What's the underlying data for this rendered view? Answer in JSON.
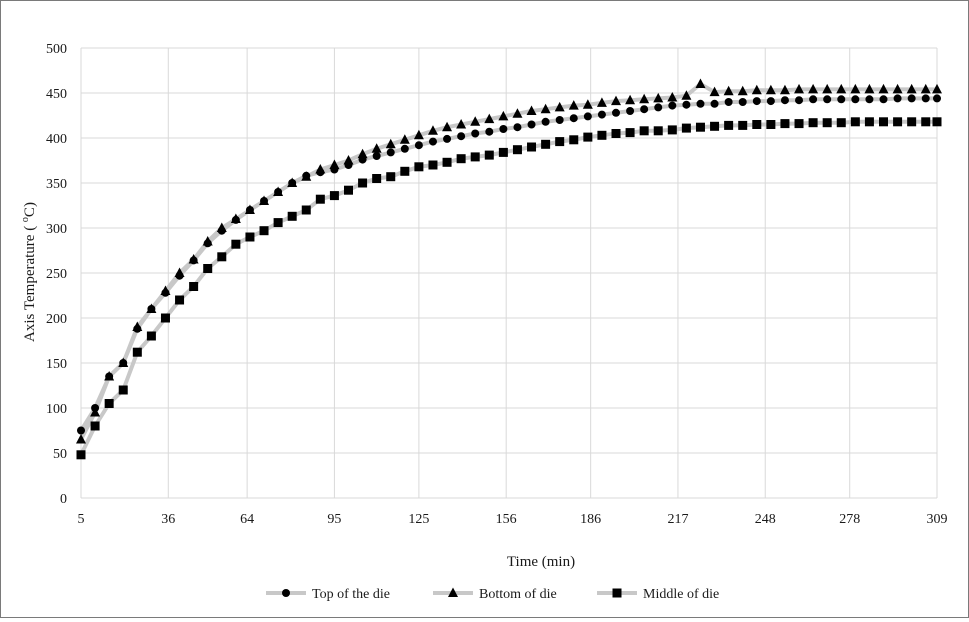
{
  "chart_data": {
    "type": "line",
    "xlabel": "Time (min)",
    "ylabel": "Axis Temperature ( °C)",
    "ylabel_main": "Axis Temperature ( ",
    "ylabel_sup": "o",
    "ylabel_unit": "C)",
    "xlim": [
      5,
      309
    ],
    "ylim": [
      0,
      500
    ],
    "x_ticks": [
      5,
      36,
      64,
      95,
      125,
      156,
      186,
      217,
      248,
      278,
      309
    ],
    "y_ticks": [
      0,
      50,
      100,
      150,
      200,
      250,
      300,
      350,
      400,
      450,
      500
    ],
    "grid": true,
    "legend_position": "bottom",
    "line_color": "#c8c8c8",
    "marker_color": "#000000",
    "series": [
      {
        "name": "Top of the die",
        "marker": "circle",
        "x": [
          5,
          10,
          15,
          20,
          25,
          30,
          35,
          40,
          45,
          50,
          55,
          60,
          65,
          70,
          75,
          80,
          85,
          90,
          95,
          100,
          105,
          110,
          115,
          120,
          125,
          130,
          135,
          140,
          145,
          150,
          155,
          160,
          165,
          170,
          175,
          180,
          185,
          190,
          195,
          200,
          205,
          210,
          215,
          220,
          225,
          230,
          235,
          240,
          245,
          250,
          255,
          260,
          265,
          270,
          275,
          280,
          285,
          290,
          295,
          300,
          305,
          309
        ],
        "values": [
          75,
          100,
          135,
          150,
          188,
          210,
          228,
          247,
          264,
          283,
          297,
          309,
          320,
          330,
          340,
          350,
          358,
          362,
          365,
          370,
          376,
          380,
          384,
          388,
          392,
          396,
          399,
          402,
          405,
          407,
          410,
          412,
          415,
          418,
          420,
          422,
          424,
          426,
          428,
          430,
          432,
          434,
          436,
          437,
          438,
          438,
          440,
          440,
          441,
          441,
          442,
          442,
          443,
          443,
          443,
          443,
          443,
          443,
          444,
          444,
          444,
          444
        ]
      },
      {
        "name": "Bottom of die",
        "marker": "triangle",
        "x": [
          5,
          10,
          15,
          20,
          25,
          30,
          35,
          40,
          45,
          50,
          55,
          60,
          65,
          70,
          75,
          80,
          85,
          90,
          95,
          100,
          105,
          110,
          115,
          120,
          125,
          130,
          135,
          140,
          145,
          150,
          155,
          160,
          165,
          170,
          175,
          180,
          185,
          190,
          195,
          200,
          205,
          210,
          215,
          220,
          225,
          230,
          235,
          240,
          245,
          250,
          255,
          260,
          265,
          270,
          275,
          280,
          285,
          290,
          295,
          300,
          305,
          309
        ],
        "values": [
          65,
          95,
          135,
          150,
          190,
          210,
          230,
          250,
          265,
          285,
          300,
          310,
          320,
          330,
          340,
          350,
          357,
          365,
          370,
          375,
          382,
          388,
          393,
          398,
          403,
          408,
          412,
          415,
          418,
          421,
          424,
          427,
          430,
          432,
          434,
          436,
          437,
          439,
          441,
          442,
          443,
          444,
          445,
          447,
          460,
          451,
          452,
          452,
          453,
          453,
          453,
          454,
          454,
          454,
          454,
          454,
          454,
          454,
          454,
          454,
          454,
          454
        ]
      },
      {
        "name": "Middle of die",
        "marker": "square",
        "x": [
          5,
          10,
          15,
          20,
          25,
          30,
          35,
          40,
          45,
          50,
          55,
          60,
          65,
          70,
          75,
          80,
          85,
          90,
          95,
          100,
          105,
          110,
          115,
          120,
          125,
          130,
          135,
          140,
          145,
          150,
          155,
          160,
          165,
          170,
          175,
          180,
          185,
          190,
          195,
          200,
          205,
          210,
          215,
          220,
          225,
          230,
          235,
          240,
          245,
          250,
          255,
          260,
          265,
          270,
          275,
          280,
          285,
          290,
          295,
          300,
          305,
          309
        ],
        "values": [
          48,
          80,
          105,
          120,
          162,
          180,
          200,
          220,
          235,
          255,
          268,
          282,
          290,
          297,
          306,
          313,
          320,
          332,
          336,
          342,
          350,
          355,
          357,
          363,
          368,
          370,
          373,
          377,
          379,
          381,
          384,
          387,
          390,
          393,
          396,
          398,
          401,
          403,
          405,
          406,
          408,
          408,
          409,
          411,
          412,
          413,
          414,
          414,
          415,
          415,
          416,
          416,
          417,
          417,
          417,
          418,
          418,
          418,
          418,
          418,
          418,
          418
        ]
      }
    ]
  }
}
